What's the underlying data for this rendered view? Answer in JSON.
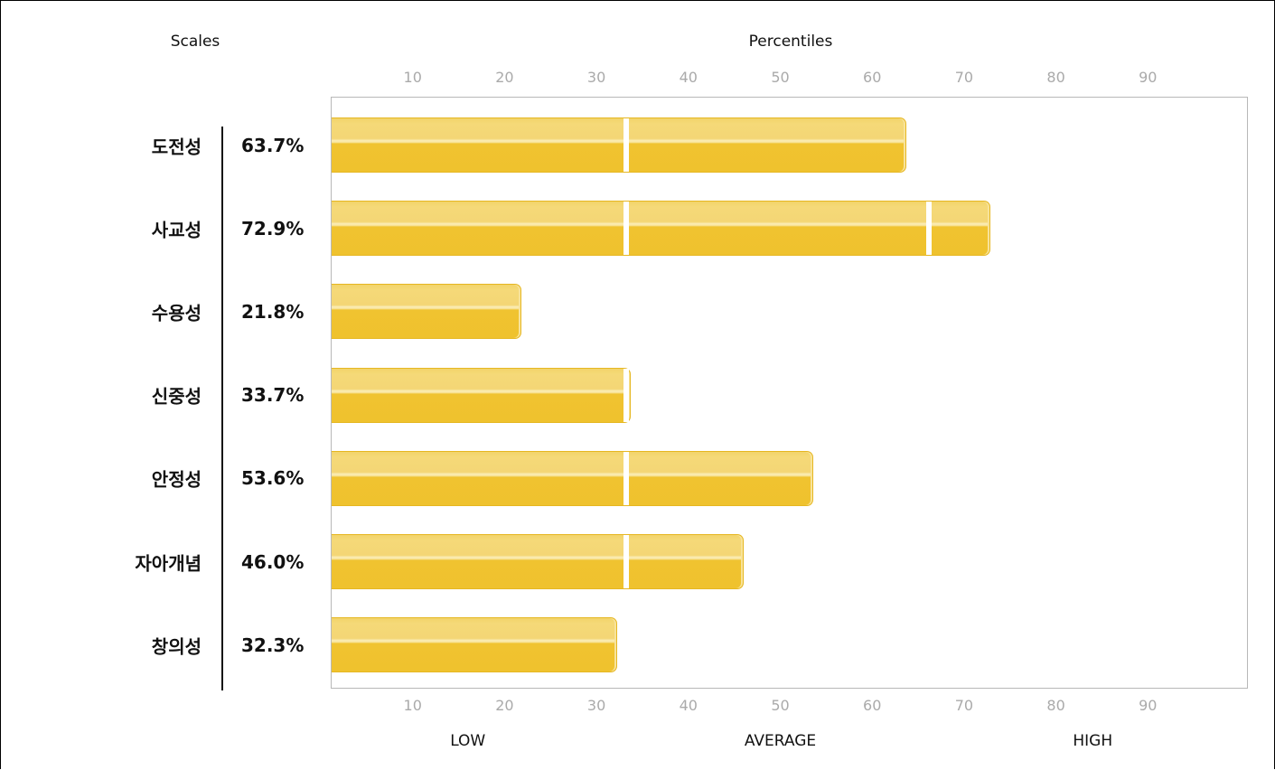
{
  "chart_data": {
    "type": "bar",
    "orientation": "horizontal",
    "scales_title": "Scales",
    "percentiles_title": "Percentiles",
    "ticks": [
      10,
      20,
      30,
      40,
      50,
      60,
      70,
      80,
      90
    ],
    "xlim": [
      0,
      100
    ],
    "categories": [
      "도전성",
      "사교성",
      "수용성",
      "신중성",
      "안정성",
      "자아개념",
      "창의성"
    ],
    "values": [
      63.7,
      72.9,
      21.8,
      33.7,
      53.6,
      46.0,
      32.3
    ],
    "value_labels": [
      "63.7%",
      "72.9%",
      "21.8%",
      "33.7%",
      "53.6%",
      "46.0%",
      "32.3%"
    ],
    "zone_boundaries": [
      33,
      66
    ],
    "zones": [
      {
        "label": "LOW",
        "center": 16
      },
      {
        "label": "AVERAGE",
        "center": 50
      },
      {
        "label": "HIGH",
        "center": 84
      }
    ],
    "bar_color": "#efc22e",
    "bar_highlight": "#f5d978",
    "grid": false
  }
}
